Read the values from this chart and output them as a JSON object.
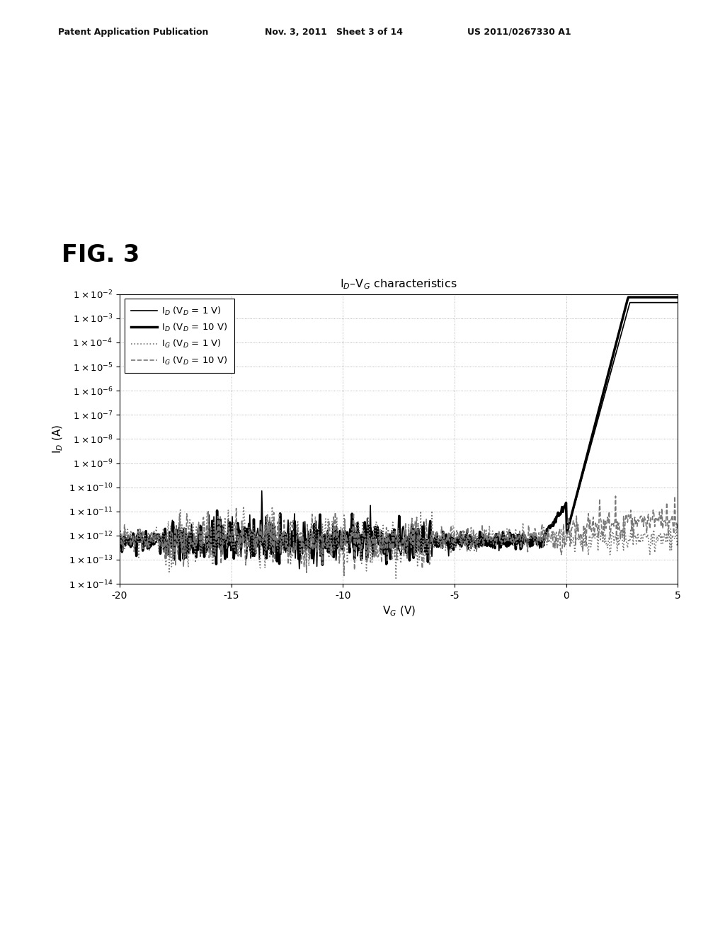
{
  "title": "I₂–V₂ characteristics",
  "title_display": "I$_D$–V$_G$ characteristics",
  "xlabel": "V$_G$ (V)",
  "ylabel": "I$_D$ (A)",
  "xlim": [
    -20,
    5
  ],
  "ylim_exp_min": -14,
  "ylim_exp_max": -2,
  "xticks": [
    -20,
    -15,
    -10,
    -5,
    0,
    5
  ],
  "fig_label": "FIG. 3",
  "header_left": "Patent Application Publication",
  "header_mid": "Nov. 3, 2011   Sheet 3 of 14",
  "header_right": "US 2011/0267330 A1",
  "background_color": "#ffffff",
  "grid_color": "#999999",
  "plot_bg": "#ffffff",
  "legend_labels": [
    "I$_D$ (V$_D$ = 1 V)",
    "I$_D$ (V$_D$ = 10 V)",
    "I$_G$ (V$_D$ = 1 V)",
    "I$_G$ (V$_D$ = 10 V)"
  ],
  "legend_linestyles": [
    "-",
    "-",
    ":",
    "--"
  ],
  "legend_linewidths": [
    1.2,
    2.5,
    1.2,
    1.2
  ],
  "legend_colors": [
    "#000000",
    "#000000",
    "#777777",
    "#777777"
  ]
}
